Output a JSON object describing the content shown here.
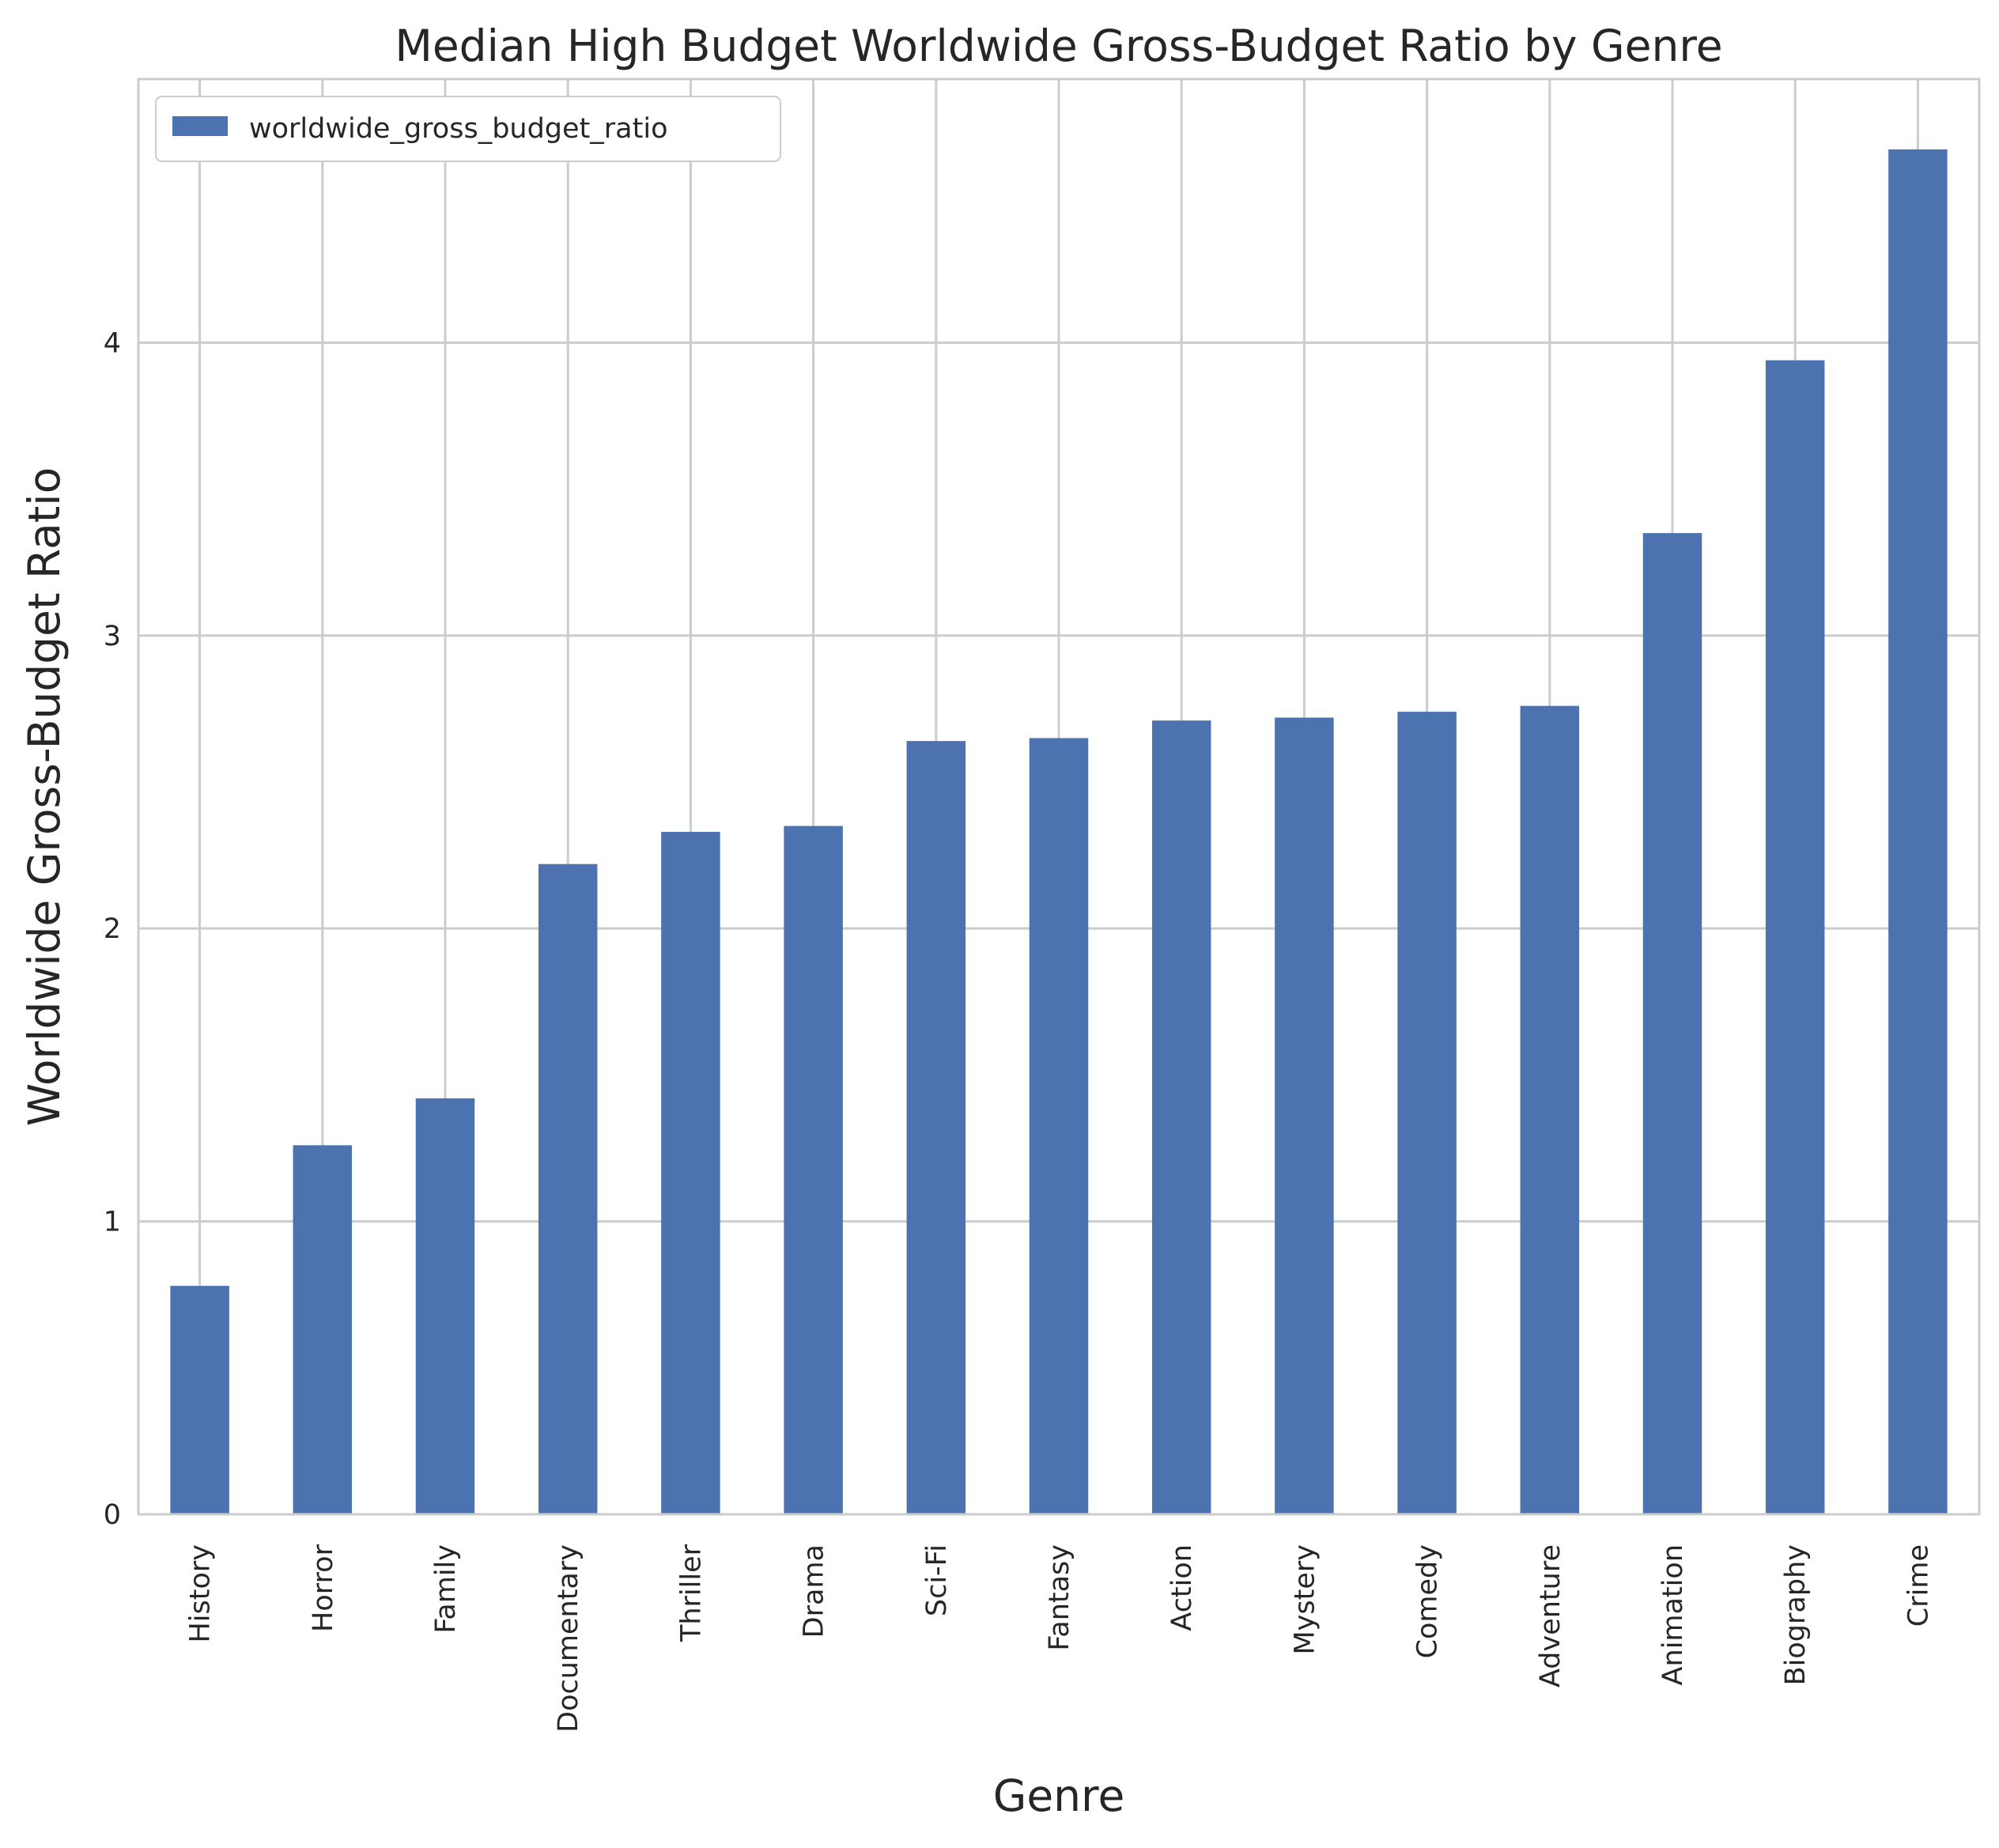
{
  "chart_data": {
    "type": "bar",
    "title": "Median High Budget Worldwide Gross-Budget Ratio by Genre",
    "xlabel": "Genre",
    "ylabel": "Worldwide Gross-Budget Ratio",
    "categories": [
      "History",
      "Horror",
      "Family",
      "Documentary",
      "Thriller",
      "Drama",
      "Sci-Fi",
      "Fantasy",
      "Action",
      "Mystery",
      "Comedy",
      "Adventure",
      "Animation",
      "Biography",
      "Crime"
    ],
    "series": [
      {
        "name": "worldwide_gross_budget_ratio",
        "values": [
          0.78,
          1.26,
          1.42,
          2.22,
          2.33,
          2.35,
          2.64,
          2.65,
          2.71,
          2.72,
          2.74,
          2.76,
          3.35,
          3.94,
          4.66
        ],
        "color": "#4c72b0"
      }
    ],
    "ylim": [
      0,
      4.9
    ],
    "yticks": [
      0,
      1,
      2,
      3,
      4
    ],
    "ytick_labels": [
      "0",
      "1",
      "2",
      "3",
      "4"
    ],
    "grid": true,
    "legend_position": "upper-left",
    "colors": {
      "grid": "#cccccc",
      "axes": "#cccccc",
      "background": "#ffffff"
    }
  }
}
